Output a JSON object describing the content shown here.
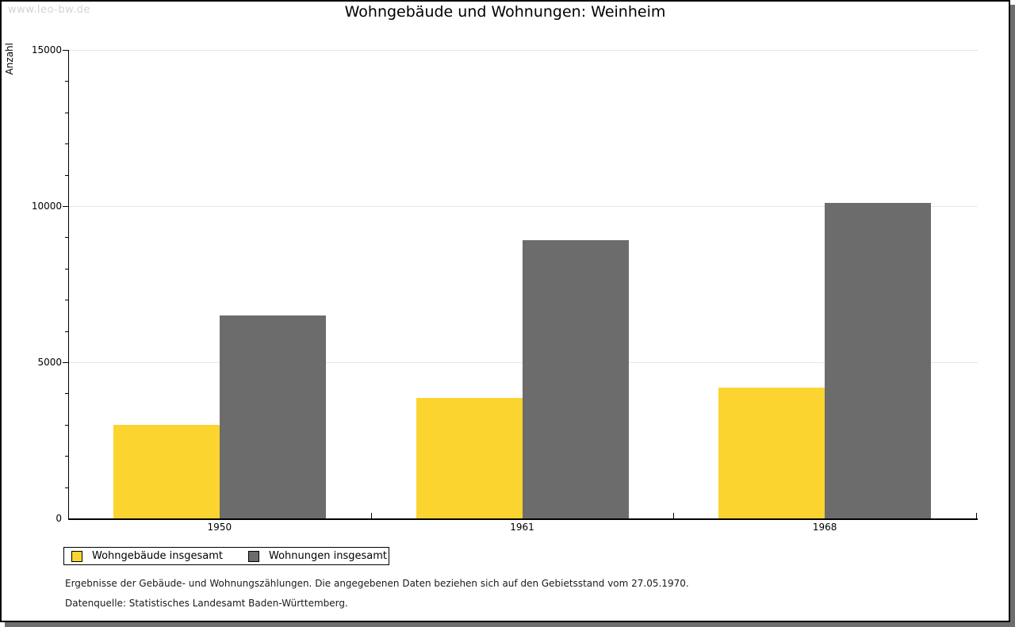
{
  "watermark": "www.leo-bw.de",
  "header": {
    "title": "Wohngebäude und Wohnungen: Weinheim"
  },
  "chart_data": {
    "type": "bar",
    "title": "Wohngebäude und Wohnungen: Weinheim",
    "xlabel": "",
    "ylabel": "Anzahl",
    "categories": [
      "1950",
      "1961",
      "1968"
    ],
    "series": [
      {
        "name": "Wohngebäude insgesamt",
        "color": "#FCD430",
        "values": [
          3000,
          3850,
          4200
        ]
      },
      {
        "name": "Wohnungen insgesamt",
        "color": "#6C6C6C",
        "values": [
          6500,
          8900,
          10100
        ]
      }
    ],
    "ylim": [
      0,
      15000
    ],
    "y_major_ticks": [
      0,
      5000,
      10000,
      15000
    ],
    "y_minor_step": 1000,
    "grid": "horizontal gridlines at major ticks",
    "legend_position": "bottom-left"
  },
  "legend": {
    "items": [
      {
        "label": "Wohngebäude insgesamt",
        "color": "#FCD430"
      },
      {
        "label": "Wohnungen insgesamt",
        "color": "#6C6C6C"
      }
    ]
  },
  "footnotes": {
    "line1": "Ergebnisse der Gebäude- und Wohnungszählungen. Die angegebenen Daten beziehen sich auf den Gebietsstand vom 27.05.1970.",
    "line2": "Datenquelle: Statistisches Landesamt Baden-Württemberg."
  },
  "colors": {
    "grid": "#E6E6E6",
    "axis": "#000000",
    "watermark": "#D3D3D3",
    "page_shadow": "#6E6E6E"
  }
}
